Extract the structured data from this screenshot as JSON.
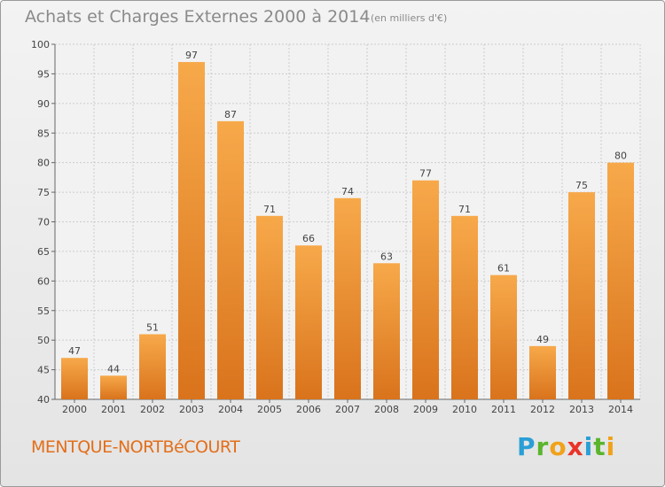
{
  "title": "Achats et Charges Externes 2000 à 2014",
  "subtitle": "(en milliers d'€)",
  "commune": "MENTQUE-NORTBéCOURT",
  "brand": {
    "letters": [
      "P",
      "r",
      "o",
      "x",
      "i",
      "t",
      "i"
    ],
    "colors": [
      "#2a9fd6",
      "#5ab52c",
      "#f0a21a",
      "#e8332a",
      "#2a9fd6",
      "#5ab52c",
      "#f0a21a"
    ]
  },
  "colors": {
    "bar_top": "#f7a94a",
    "bar_bottom": "#d9731c",
    "grid": "#cccccc"
  },
  "chart_data": {
    "type": "bar",
    "categories": [
      "2000",
      "2001",
      "2002",
      "2003",
      "2004",
      "2005",
      "2006",
      "2007",
      "2008",
      "2009",
      "2010",
      "2011",
      "2012",
      "2013",
      "2014"
    ],
    "values": [
      47,
      44,
      51,
      97,
      87,
      71,
      66,
      74,
      63,
      77,
      71,
      61,
      49,
      75,
      80
    ],
    "ylim": [
      40,
      100
    ],
    "yticks": [
      40,
      45,
      50,
      55,
      60,
      65,
      70,
      75,
      80,
      85,
      90,
      95,
      100
    ],
    "grid": true
  }
}
